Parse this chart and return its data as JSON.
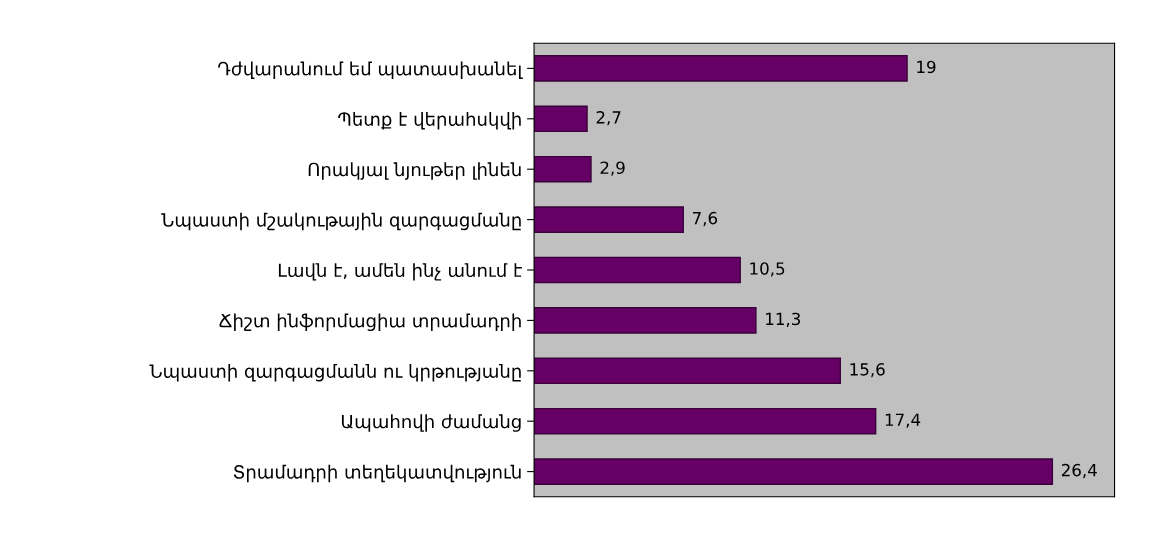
{
  "chart_data": {
    "type": "bar",
    "orientation": "horizontal",
    "categories": [
      "Դժվարանում եմ պատասխանել",
      "Պետք է վերահսկվի",
      "Որակյալ նյութեր լինեն",
      "Նպաստի մշակութային զարգացմանը",
      "Լավն է, ամեն ինչ անում է",
      "Ճիշտ ինֆորմացիա տրամադրի",
      "Նպաստի զարգացմանն ու կրթությանը",
      "Ապահովի ժամանց",
      "Տրամադրի տեղեկատվություն"
    ],
    "values": [
      19,
      2.7,
      2.9,
      7.6,
      10.5,
      11.3,
      15.6,
      17.4,
      26.4
    ],
    "value_labels": [
      "19",
      "2,7",
      "2,9",
      "7,6",
      "10,5",
      "11,3",
      "15,6",
      "17,4",
      "26,4"
    ],
    "color": "#660066",
    "tick_labels": "y",
    "grid": false,
    "legend": false
  }
}
